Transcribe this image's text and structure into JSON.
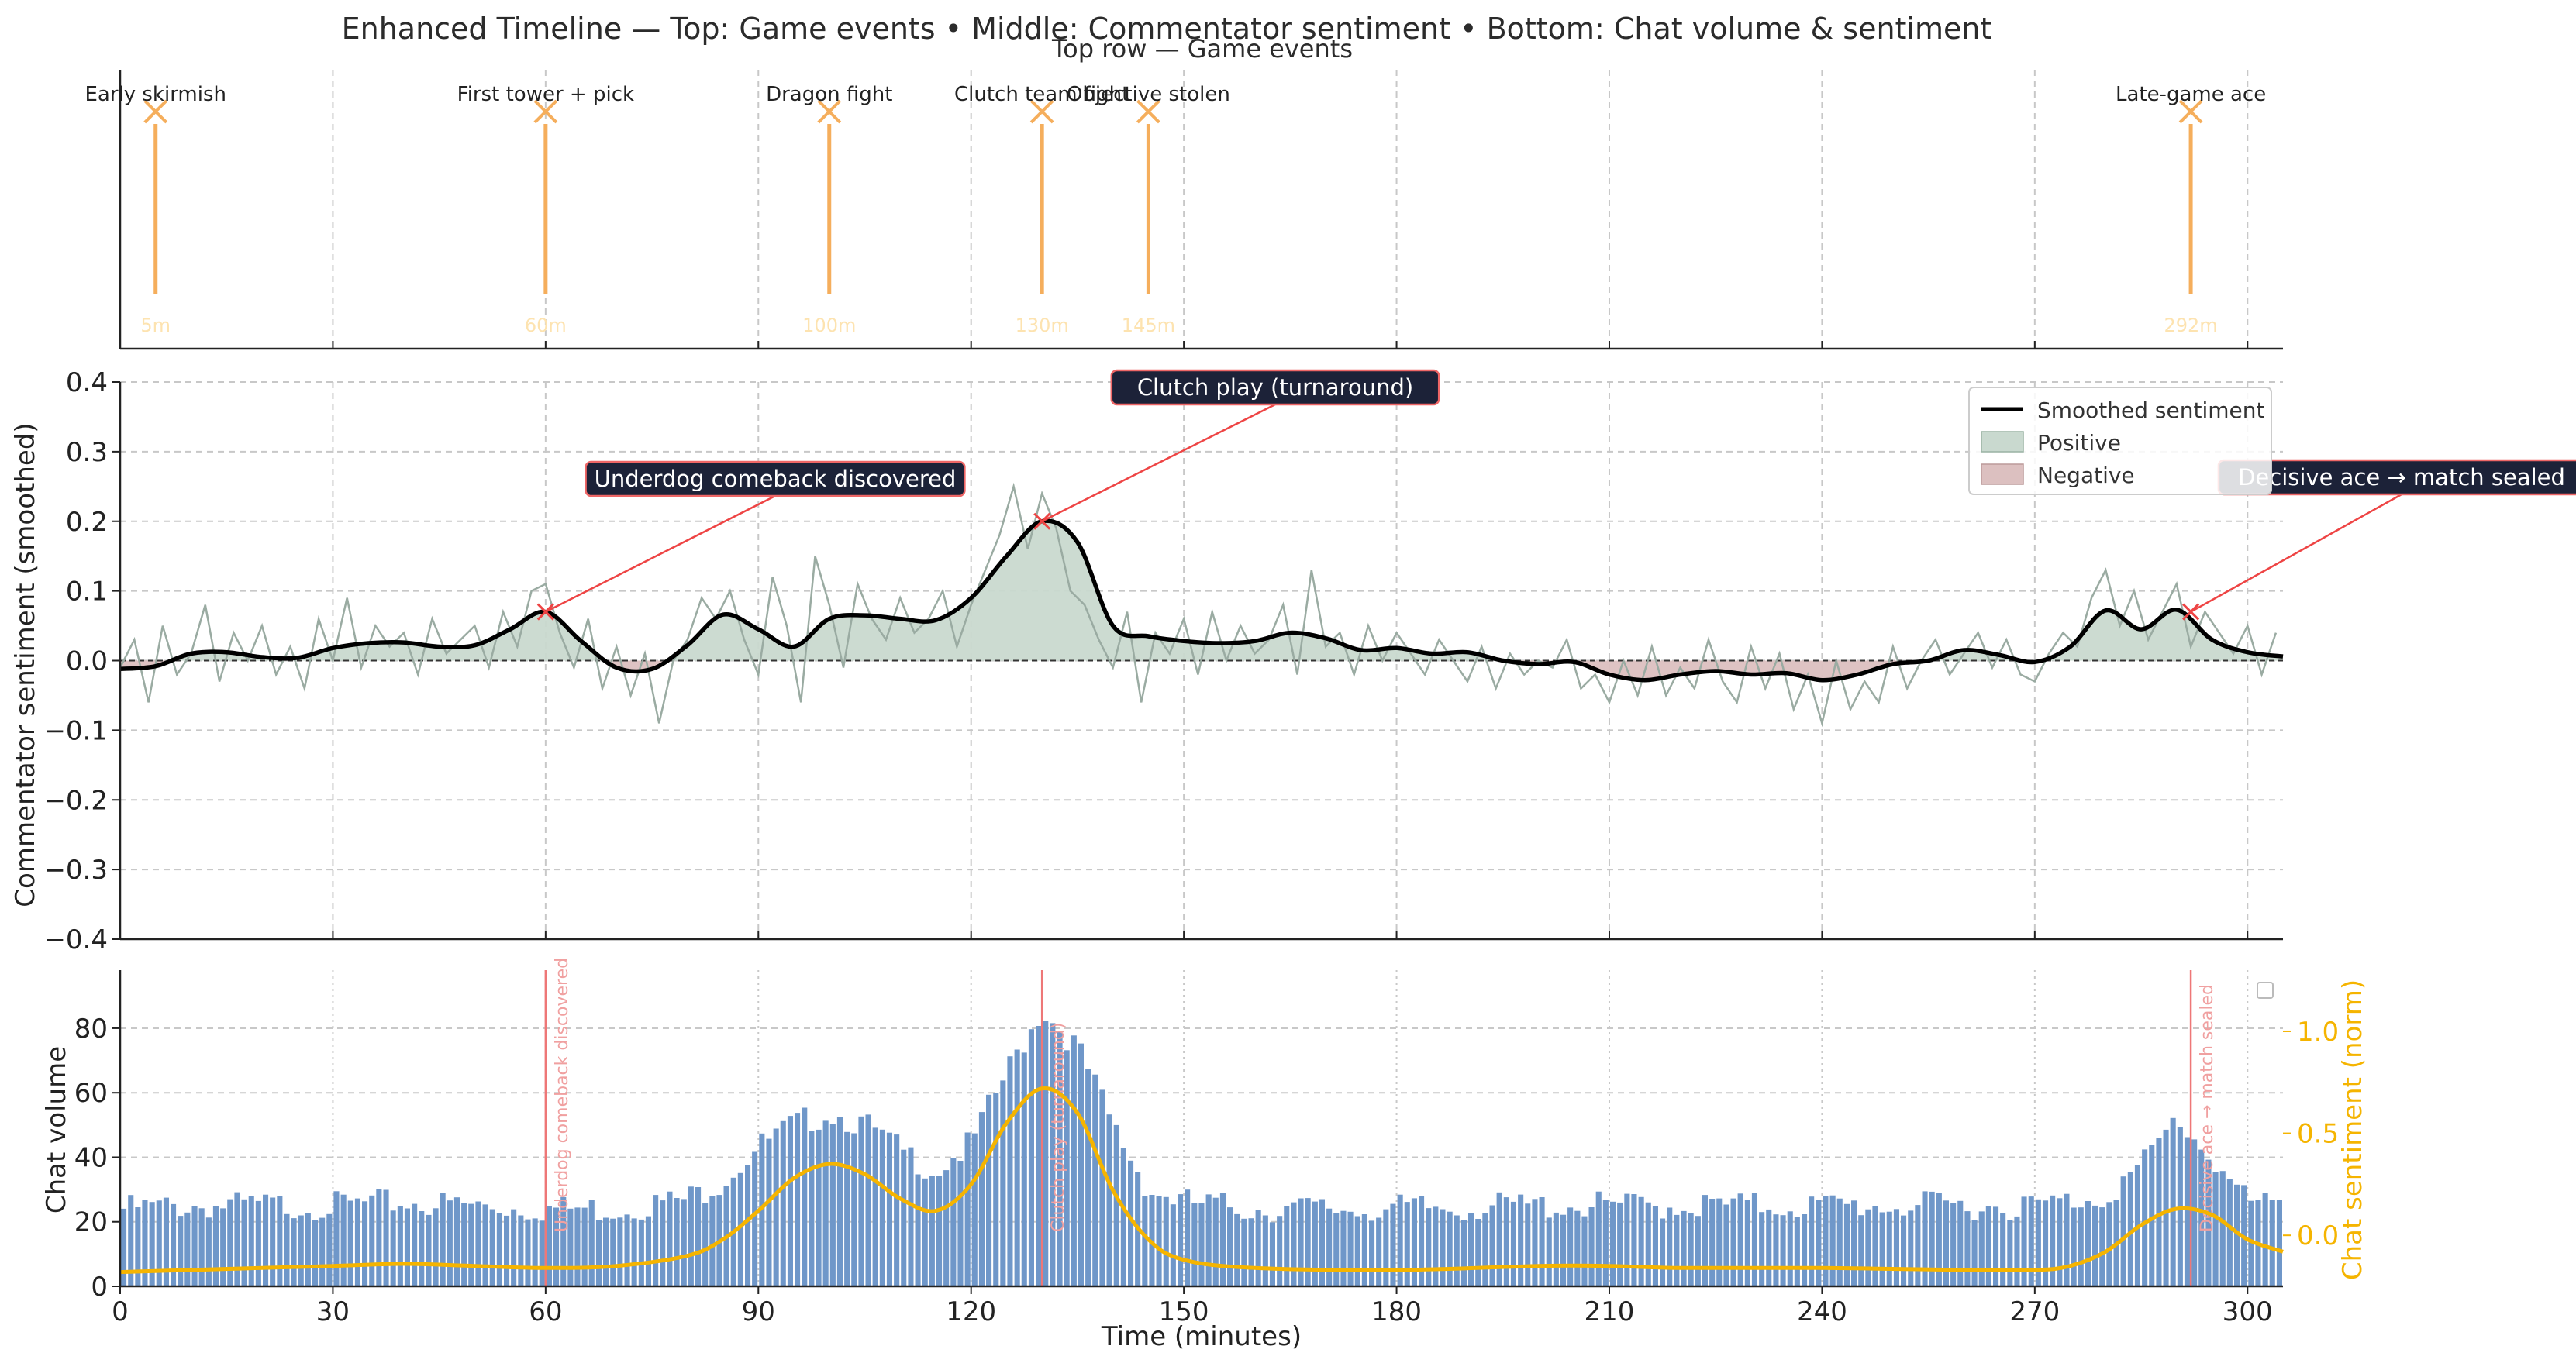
{
  "figure": {
    "title": "Enhanced Timeline — Top: Game events • Middle: Commentator sentiment • Bottom: Chat volume & sentiment"
  },
  "top_panel": {
    "title": "Top row — Game events"
  },
  "colors": {
    "event": "#f5ae5c",
    "event_label": "#fde3b0",
    "smoothed": "#000000",
    "raw": "#9aaba2",
    "positive_fill": "#c9d9cf",
    "negative_fill": "#dcc0c0",
    "bar": "#6f97c9",
    "chat_sentiment": "#f5b400",
    "annotation_box": "#1c2238",
    "annotation_edge": "#ee6666",
    "arrow": "#ee4444",
    "moment_line": "#ee7777",
    "grid": "#c8c8c8"
  },
  "middle_panel": {
    "ylabel": "Commentator sentiment (smoothed)",
    "legend": {
      "smoothed": "Smoothed sentiment",
      "positive": "Positive",
      "negative": "Negative"
    },
    "annotations": [
      {
        "text": "Underdog comeback discovered",
        "x": 60,
        "y": 0.07
      },
      {
        "text": "Clutch play (turnaround)",
        "x": 130,
        "y": 0.2
      },
      {
        "text": "Decisive ace → match sealed",
        "x": 292,
        "y": 0.07
      }
    ]
  },
  "bottom_panel": {
    "ylabel_left": "Chat volume",
    "ylabel_right": "Chat sentiment (norm)",
    "xlabel": "Time (minutes)",
    "moment_labels": [
      {
        "x": 60,
        "text": "Underdog comeback discovered"
      },
      {
        "x": 130,
        "text": "Clutch play (turnaround)"
      },
      {
        "x": 292,
        "text": "Decisive ace → match sealed"
      }
    ]
  },
  "chart_data": [
    {
      "type": "scatter",
      "panel": "top",
      "title": "Top row — Game events",
      "xlim": [
        0,
        305
      ],
      "events": [
        {
          "x": 5,
          "label": "Early skirmish",
          "time_label": "5m"
        },
        {
          "x": 60,
          "label": "First tower + pick",
          "time_label": "60m"
        },
        {
          "x": 100,
          "label": "Dragon fight",
          "time_label": "100m"
        },
        {
          "x": 130,
          "label": "Clutch team fight",
          "time_label": "130m"
        },
        {
          "x": 145,
          "label": "Objective stolen",
          "time_label": "145m"
        },
        {
          "x": 292,
          "label": "Late-game ace",
          "time_label": "292m"
        }
      ],
      "grid": true
    },
    {
      "type": "line",
      "panel": "middle",
      "ylabel": "Commentator sentiment (smoothed)",
      "xlim": [
        0,
        305
      ],
      "ylim": [
        -0.4,
        0.4
      ],
      "xticks": [
        0,
        30,
        60,
        90,
        120,
        150,
        180,
        210,
        240,
        270,
        300
      ],
      "yticks": [
        -0.4,
        -0.3,
        -0.2,
        -0.1,
        0.0,
        0.1,
        0.2,
        0.3,
        0.4
      ],
      "ytick_labels": [
        "−0.4",
        "−0.3",
        "−0.2",
        "−0.1",
        "0.0",
        "0.1",
        "0.2",
        "0.3",
        "0.4"
      ],
      "legend_position": "top-right",
      "grid": true,
      "smoothed": {
        "x": [
          0,
          5,
          10,
          15,
          20,
          25,
          30,
          35,
          40,
          45,
          50,
          55,
          60,
          65,
          70,
          75,
          80,
          85,
          90,
          95,
          100,
          105,
          110,
          115,
          120,
          125,
          130,
          135,
          140,
          145,
          150,
          155,
          160,
          165,
          170,
          175,
          180,
          185,
          190,
          195,
          200,
          205,
          210,
          215,
          220,
          225,
          230,
          235,
          240,
          245,
          250,
          255,
          260,
          265,
          270,
          275,
          280,
          285,
          290,
          295,
          300,
          305
        ],
        "y": [
          -0.012,
          -0.008,
          0.01,
          0.012,
          0.005,
          0.004,
          0.018,
          0.025,
          0.026,
          0.02,
          0.022,
          0.045,
          0.07,
          0.028,
          -0.01,
          -0.012,
          0.022,
          0.066,
          0.045,
          0.02,
          0.06,
          0.065,
          0.06,
          0.058,
          0.09,
          0.15,
          0.2,
          0.17,
          0.05,
          0.035,
          0.028,
          0.025,
          0.028,
          0.04,
          0.032,
          0.015,
          0.018,
          0.01,
          0.012,
          0.0,
          -0.005,
          -0.002,
          -0.02,
          -0.028,
          -0.02,
          -0.015,
          -0.02,
          -0.018,
          -0.028,
          -0.02,
          -0.005,
          0.0,
          0.015,
          0.008,
          -0.002,
          0.02,
          0.072,
          0.045,
          0.073,
          0.03,
          0.012,
          0.006
        ]
      },
      "raw": {
        "x": [
          0,
          2,
          4,
          6,
          8,
          10,
          12,
          14,
          16,
          18,
          20,
          22,
          24,
          26,
          28,
          30,
          32,
          34,
          36,
          38,
          40,
          42,
          44,
          46,
          48,
          50,
          52,
          54,
          56,
          58,
          60,
          62,
          64,
          66,
          68,
          70,
          72,
          74,
          76,
          78,
          80,
          82,
          84,
          86,
          88,
          90,
          92,
          94,
          96,
          98,
          100,
          102,
          104,
          106,
          108,
          110,
          112,
          114,
          116,
          118,
          120,
          122,
          124,
          126,
          128,
          130,
          132,
          134,
          136,
          138,
          140,
          142,
          144,
          146,
          148,
          150,
          152,
          154,
          156,
          158,
          160,
          162,
          164,
          166,
          168,
          170,
          172,
          174,
          176,
          178,
          180,
          182,
          184,
          186,
          188,
          190,
          192,
          194,
          196,
          198,
          200,
          202,
          204,
          206,
          208,
          210,
          212,
          214,
          216,
          218,
          220,
          222,
          224,
          226,
          228,
          230,
          232,
          234,
          236,
          238,
          240,
          242,
          244,
          246,
          248,
          250,
          252,
          254,
          256,
          258,
          260,
          262,
          264,
          266,
          268,
          270,
          272,
          274,
          276,
          278,
          280,
          282,
          284,
          286,
          288,
          290,
          292,
          294,
          296,
          298,
          300,
          302,
          304
        ],
        "y": [
          -0.01,
          0.03,
          -0.06,
          0.05,
          -0.02,
          0.01,
          0.08,
          -0.03,
          0.04,
          0.0,
          0.05,
          -0.02,
          0.02,
          -0.04,
          0.06,
          0.0,
          0.09,
          -0.01,
          0.05,
          0.02,
          0.04,
          -0.02,
          0.06,
          0.01,
          0.03,
          0.05,
          -0.01,
          0.07,
          0.02,
          0.1,
          0.11,
          0.04,
          -0.01,
          0.06,
          -0.04,
          0.02,
          -0.05,
          0.01,
          -0.09,
          0.0,
          0.03,
          0.09,
          0.06,
          0.1,
          0.03,
          -0.02,
          0.12,
          0.05,
          -0.06,
          0.15,
          0.08,
          -0.01,
          0.11,
          0.06,
          0.03,
          0.09,
          0.04,
          0.06,
          0.1,
          0.02,
          0.08,
          0.13,
          0.18,
          0.25,
          0.16,
          0.24,
          0.19,
          0.1,
          0.08,
          0.03,
          -0.01,
          0.07,
          -0.06,
          0.04,
          0.01,
          0.06,
          -0.02,
          0.07,
          0.0,
          0.05,
          0.01,
          0.03,
          0.08,
          -0.02,
          0.13,
          0.02,
          0.04,
          -0.02,
          0.05,
          0.0,
          0.04,
          0.01,
          -0.02,
          0.03,
          0.0,
          -0.03,
          0.02,
          -0.04,
          0.01,
          -0.02,
          0.0,
          -0.01,
          0.03,
          -0.04,
          -0.02,
          -0.06,
          0.0,
          -0.05,
          0.02,
          -0.05,
          -0.01,
          -0.04,
          0.03,
          -0.03,
          -0.06,
          0.02,
          -0.04,
          0.01,
          -0.07,
          -0.02,
          -0.09,
          0.0,
          -0.07,
          -0.03,
          -0.06,
          0.02,
          -0.04,
          0.0,
          0.03,
          -0.02,
          0.01,
          0.04,
          -0.01,
          0.03,
          -0.02,
          -0.03,
          0.01,
          0.04,
          0.02,
          0.09,
          0.13,
          0.05,
          0.1,
          0.03,
          0.07,
          0.11,
          0.02,
          0.07,
          0.04,
          0.01,
          0.05,
          -0.02,
          0.04
        ]
      }
    },
    {
      "type": "bar",
      "panel": "bottom",
      "xlabel": "Time (minutes)",
      "ylabel": "Chat volume",
      "ylabel_secondary": "Chat sentiment (norm)",
      "xlim": [
        0,
        305
      ],
      "ylim": [
        0,
        98
      ],
      "ylim_secondary": [
        -0.25,
        1.3
      ],
      "xticks": [
        0,
        30,
        60,
        90,
        120,
        150,
        180,
        210,
        240,
        270,
        300
      ],
      "yticks": [
        0,
        20,
        40,
        60,
        80
      ],
      "yticks_secondary": [
        0.0,
        0.5,
        1.0
      ],
      "grid": true,
      "volume_profile": {
        "x": [
          0,
          10,
          20,
          30,
          40,
          50,
          60,
          70,
          80,
          85,
          90,
          95,
          100,
          105,
          110,
          115,
          120,
          125,
          130,
          135,
          140,
          145,
          150,
          160,
          180,
          200,
          220,
          240,
          260,
          270,
          280,
          285,
          290,
          295,
          300,
          305
        ],
        "y": [
          24,
          25,
          25,
          25,
          26,
          25,
          24,
          24,
          27,
          33,
          43,
          50,
          54,
          50,
          42,
          36,
          44,
          66,
          86,
          74,
          50,
          30,
          26,
          24,
          24,
          25,
          25,
          25,
          25,
          25,
          28,
          37,
          52,
          40,
          26,
          24
        ]
      },
      "chat_sentiment": {
        "x": [
          0,
          10,
          20,
          30,
          40,
          50,
          60,
          70,
          80,
          85,
          90,
          95,
          100,
          105,
          110,
          115,
          120,
          125,
          130,
          135,
          140,
          145,
          150,
          160,
          180,
          200,
          210,
          220,
          240,
          260,
          270,
          275,
          280,
          285,
          290,
          295,
          300,
          305
        ],
        "y": [
          -0.18,
          -0.17,
          -0.16,
          -0.15,
          -0.14,
          -0.15,
          -0.16,
          -0.15,
          -0.1,
          -0.02,
          0.12,
          0.28,
          0.35,
          0.3,
          0.18,
          0.12,
          0.25,
          0.55,
          0.72,
          0.6,
          0.22,
          -0.02,
          -0.12,
          -0.16,
          -0.17,
          -0.15,
          -0.15,
          -0.16,
          -0.16,
          -0.17,
          -0.17,
          -0.15,
          -0.08,
          0.05,
          0.13,
          0.1,
          -0.02,
          -0.08
        ]
      }
    }
  ]
}
